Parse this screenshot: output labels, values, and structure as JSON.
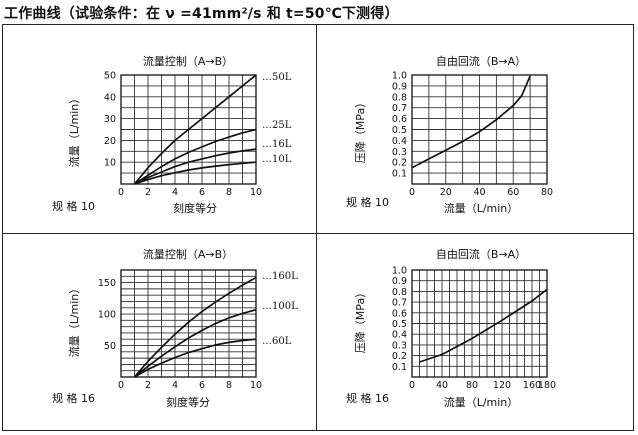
{
  "page_title": "工作曲线（试验条件：在 ν =41mm²/s 和 t=50℃下测得）",
  "chart_data": [
    {
      "type": "line",
      "title": "流量控制（A→B）",
      "xlabel": "刻度等分",
      "ylabel": "流量（L/min）",
      "spec": "规 格 10",
      "xlim": [
        0,
        10
      ],
      "ylim": [
        0,
        50
      ],
      "xticks": [
        0,
        2,
        4,
        6,
        8,
        10
      ],
      "yticks": [
        10,
        20,
        30,
        40,
        50
      ],
      "grid": true,
      "series": [
        {
          "name": "…50L",
          "x": [
            1,
            2,
            3,
            4,
            5,
            6,
            7,
            8,
            9,
            10
          ],
          "y": [
            0,
            7.5,
            14,
            20,
            25,
            30,
            35,
            40,
            45,
            50
          ]
        },
        {
          "name": "…25L",
          "x": [
            1,
            2,
            3,
            4,
            5,
            6,
            7,
            8,
            9,
            10
          ],
          "y": [
            0,
            4,
            8,
            11.5,
            14.5,
            17,
            19.5,
            21.5,
            23.5,
            25
          ]
        },
        {
          "name": "…16L",
          "x": [
            1,
            2,
            3,
            4,
            5,
            6,
            7,
            8,
            9,
            10
          ],
          "y": [
            0,
            3,
            5.5,
            8,
            10,
            11.5,
            13,
            14.2,
            15.2,
            16
          ]
        },
        {
          "name": "…10L",
          "x": [
            1,
            2,
            3,
            4,
            5,
            6,
            7,
            8,
            9,
            10
          ],
          "y": [
            0,
            2,
            3.8,
            5.2,
            6.4,
            7.4,
            8.2,
            8.9,
            9.5,
            10
          ]
        }
      ]
    },
    {
      "type": "line",
      "title": "自由回流（B→A）",
      "xlabel": "流量（L/min）",
      "ylabel": "压降（MPa）",
      "spec": "规 格 10",
      "xlim": [
        0,
        80
      ],
      "ylim": [
        0,
        1.0
      ],
      "xticks": [
        0,
        20,
        40,
        60,
        80
      ],
      "yticks": [
        0.1,
        0.2,
        0.3,
        0.4,
        0.5,
        0.6,
        0.7,
        0.8,
        0.9,
        1.0
      ],
      "grid": true,
      "series": [
        {
          "name": "",
          "x": [
            0,
            10,
            20,
            30,
            40,
            50,
            60,
            65,
            70
          ],
          "y": [
            0.15,
            0.23,
            0.31,
            0.39,
            0.48,
            0.59,
            0.72,
            0.81,
            0.99
          ]
        }
      ]
    },
    {
      "type": "line",
      "title": "流量控制（A→B）",
      "xlabel": "刻度等分",
      "ylabel": "流量（L/min）",
      "spec": "规 格 16",
      "xlim": [
        0,
        10
      ],
      "ylim": [
        0,
        170
      ],
      "xticks": [
        0,
        2,
        4,
        6,
        8,
        10
      ],
      "yticks": [
        50,
        100,
        150
      ],
      "grid": true,
      "series": [
        {
          "name": "…160L",
          "x": [
            1,
            2,
            3,
            4,
            5,
            6,
            7,
            8,
            9,
            10
          ],
          "y": [
            0,
            25,
            47,
            68,
            87,
            104,
            119,
            133,
            146,
            158
          ]
        },
        {
          "name": "…100L",
          "x": [
            1,
            2,
            3,
            4,
            5,
            6,
            7,
            8,
            9,
            10
          ],
          "y": [
            0,
            17,
            33,
            48,
            62,
            74,
            85,
            94,
            101,
            107
          ]
        },
        {
          "name": "…60L",
          "x": [
            1,
            2,
            3,
            4,
            5,
            6,
            7,
            8,
            9,
            10
          ],
          "y": [
            0,
            12,
            22,
            31,
            39,
            45,
            51,
            55,
            58,
            60
          ]
        }
      ]
    },
    {
      "type": "line",
      "title": "自由回流（B→A）",
      "xlabel": "流量（L/min）",
      "ylabel": "压降（MPa）",
      "spec": "规 格 16",
      "xlim": [
        0,
        180
      ],
      "ylim": [
        0,
        1.0
      ],
      "xticks": [
        0,
        40,
        80,
        120,
        160,
        180
      ],
      "yticks": [
        0.1,
        0.2,
        0.3,
        0.4,
        0.5,
        0.6,
        0.7,
        0.8,
        0.9,
        1.0
      ],
      "grid": true,
      "series": [
        {
          "name": "",
          "x": [
            10,
            40,
            80,
            120,
            160,
            180
          ],
          "y": [
            0.14,
            0.21,
            0.36,
            0.53,
            0.71,
            0.82
          ]
        }
      ]
    }
  ]
}
